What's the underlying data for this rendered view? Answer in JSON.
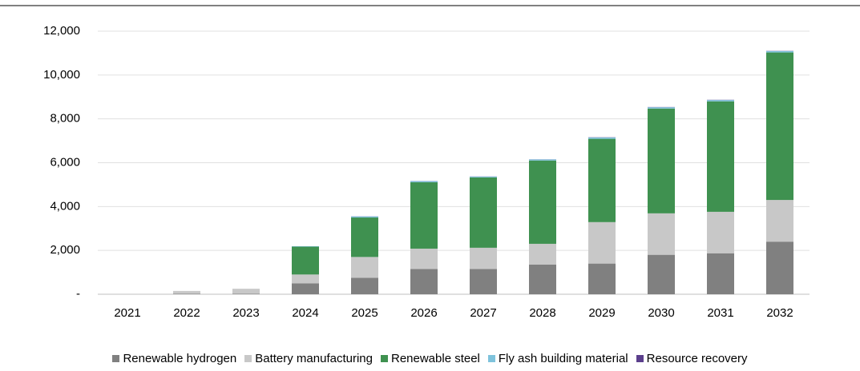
{
  "chart_data": {
    "type": "stacked_bar",
    "categories": [
      "2021",
      "2022",
      "2023",
      "2024",
      "2025",
      "2026",
      "2027",
      "2028",
      "2029",
      "2030",
      "2031",
      "2032"
    ],
    "series": [
      {
        "name": "Renewable hydrogen",
        "color": "#808080",
        "values": [
          0,
          20,
          20,
          500,
          750,
          1150,
          1150,
          1350,
          1400,
          1800,
          1870,
          2400
        ]
      },
      {
        "name": "Battery manufacturing",
        "color": "#c8c8c8",
        "values": [
          0,
          130,
          230,
          400,
          950,
          930,
          970,
          950,
          1890,
          1890,
          1890,
          1900
        ]
      },
      {
        "name": "Renewable steel",
        "color": "#3f9150",
        "values": [
          0,
          0,
          0,
          1270,
          1800,
          3030,
          3210,
          3800,
          3800,
          4780,
          5040,
          6730
        ]
      },
      {
        "name": "Fly ash building material",
        "color": "#7fc3dc",
        "values": [
          0,
          0,
          0,
          20,
          50,
          50,
          40,
          50,
          60,
          60,
          60,
          60
        ]
      },
      {
        "name": "Resource recovery",
        "color": "#5b3f8c",
        "values": [
          0,
          0,
          0,
          0,
          5,
          5,
          5,
          5,
          10,
          10,
          10,
          10
        ]
      }
    ],
    "ylim": [
      0,
      12000
    ],
    "yticks": [
      {
        "value": 0,
        "label": "-"
      },
      {
        "value": 2000,
        "label": "2,000"
      },
      {
        "value": 4000,
        "label": "4,000"
      },
      {
        "value": 6000,
        "label": "6,000"
      },
      {
        "value": 8000,
        "label": "8,000"
      },
      {
        "value": 10000,
        "label": "10,000"
      },
      {
        "value": 12000,
        "label": "12,000"
      }
    ],
    "grid": true,
    "legend": "bottom"
  }
}
